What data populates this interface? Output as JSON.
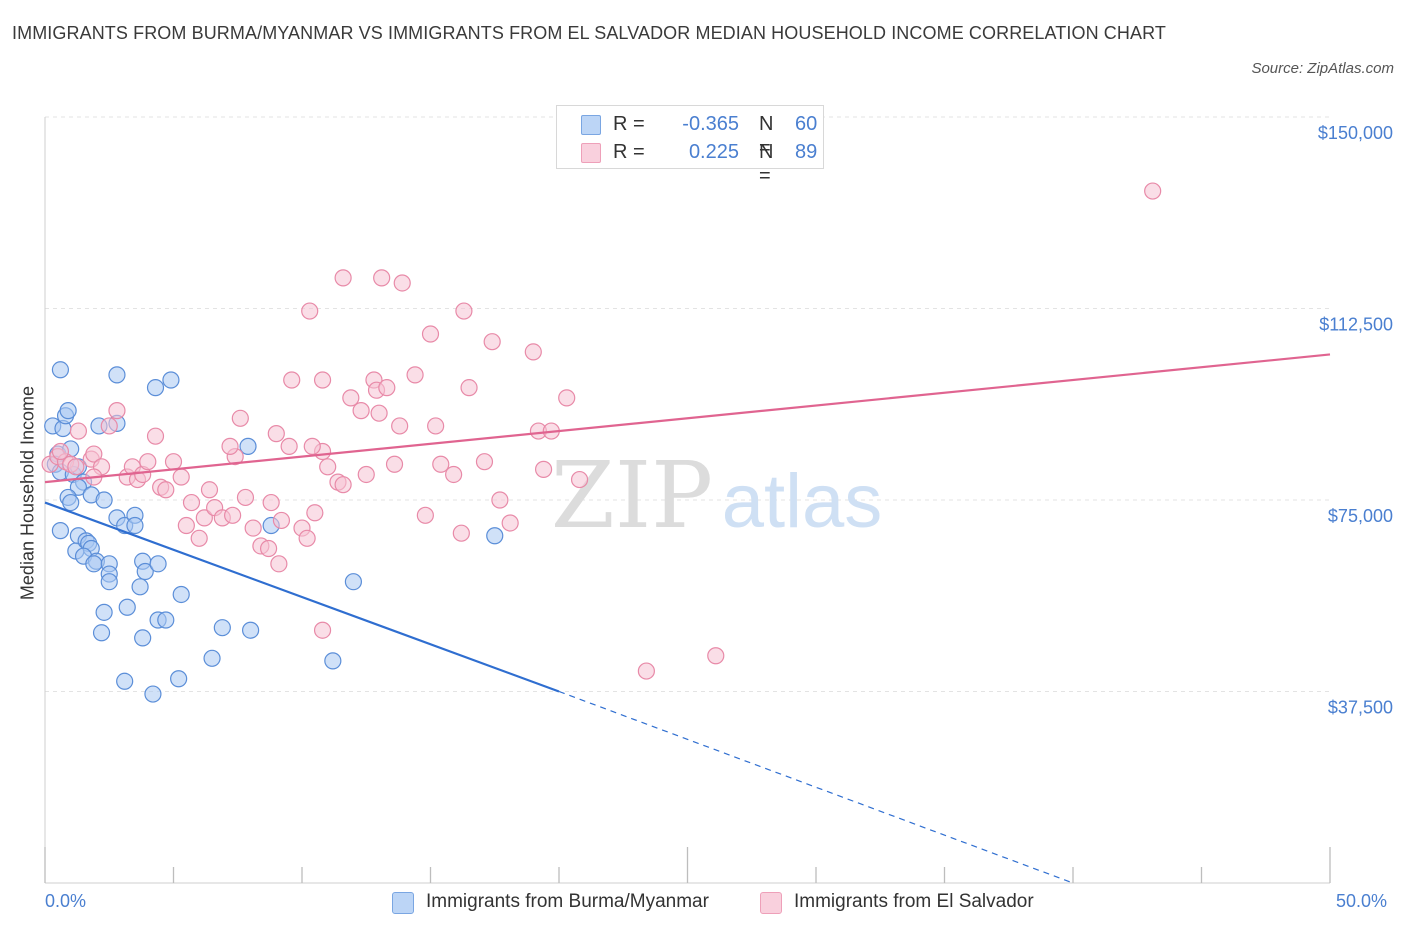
{
  "header": {
    "title": "IMMIGRANTS FROM BURMA/MYANMAR VS IMMIGRANTS FROM EL SALVADOR MEDIAN HOUSEHOLD INCOME CORRELATION CHART",
    "source": "Source: ZipAtlas.com"
  },
  "legend": {
    "series1": {
      "r_label": "R =",
      "r_value": "-0.365",
      "n_label": "N =",
      "n_value": "60"
    },
    "series2": {
      "r_label": "R =",
      "r_value": "0.225",
      "n_label": "N =",
      "n_value": "89"
    }
  },
  "watermark": {
    "zip": "ZIP",
    "atlas": "atlas"
  },
  "colors": {
    "series1_fill": "#a9c8f2",
    "series1_stroke": "#5b8ed8",
    "series1_line": "#2f6ed0",
    "series2_fill": "#f6c3d3",
    "series2_stroke": "#e88aa8",
    "series2_line": "#e06490",
    "tick_text": "#4a7fd0",
    "grid": "#e3e3e3"
  },
  "chart_data": {
    "type": "scatter",
    "title": "IMMIGRANTS FROM BURMA/MYANMAR VS IMMIGRANTS FROM EL SALVADOR MEDIAN HOUSEHOLD INCOME CORRELATION CHART",
    "xlabel": "",
    "ylabel": "Median Household Income",
    "xlim": [
      0,
      50
    ],
    "ylim": [
      0,
      150000
    ],
    "x_tick_labels": [
      "0.0%",
      "50.0%"
    ],
    "y_ticks": [
      37500,
      75000,
      112500,
      150000
    ],
    "y_tick_labels": [
      "$37,500",
      "$75,000",
      "$112,500",
      "$150,000"
    ],
    "grid": true,
    "legend_position": "top-center",
    "series": [
      {
        "name": "Immigrants from Burma/Myanmar",
        "r": -0.365,
        "n": 60,
        "trend": {
          "x0": 0.0,
          "y0": 74500,
          "x1": 20.0,
          "y1": 37500,
          "dashed_to_x": 40.0,
          "dashed_to_y": 0
        },
        "points": [
          [
            0.3,
            89500
          ],
          [
            0.5,
            84000
          ],
          [
            0.4,
            82000
          ],
          [
            0.6,
            80500
          ],
          [
            0.7,
            89000
          ],
          [
            0.6,
            100500
          ],
          [
            0.8,
            91500
          ],
          [
            0.9,
            92500
          ],
          [
            1.0,
            85000
          ],
          [
            1.1,
            80000
          ],
          [
            1.3,
            81500
          ],
          [
            1.5,
            78500
          ],
          [
            1.3,
            77500
          ],
          [
            0.9,
            75500
          ],
          [
            1.0,
            74500
          ],
          [
            1.8,
            76000
          ],
          [
            2.3,
            75000
          ],
          [
            2.1,
            89500
          ],
          [
            2.8,
            90000
          ],
          [
            2.8,
            71500
          ],
          [
            3.1,
            70000
          ],
          [
            3.5,
            72000
          ],
          [
            3.5,
            70000
          ],
          [
            0.6,
            69000
          ],
          [
            1.3,
            68000
          ],
          [
            1.2,
            65000
          ],
          [
            1.6,
            67000
          ],
          [
            1.7,
            66500
          ],
          [
            1.8,
            65500
          ],
          [
            1.5,
            64000
          ],
          [
            2.0,
            63000
          ],
          [
            1.9,
            62500
          ],
          [
            2.5,
            62500
          ],
          [
            3.8,
            63000
          ],
          [
            3.9,
            61000
          ],
          [
            4.4,
            62500
          ],
          [
            2.5,
            60500
          ],
          [
            2.5,
            59000
          ],
          [
            3.7,
            58000
          ],
          [
            5.3,
            56500
          ],
          [
            2.3,
            53000
          ],
          [
            3.2,
            54000
          ],
          [
            4.4,
            51500
          ],
          [
            4.7,
            51500
          ],
          [
            2.2,
            49000
          ],
          [
            3.8,
            48000
          ],
          [
            6.9,
            50000
          ],
          [
            8.0,
            49500
          ],
          [
            6.5,
            44000
          ],
          [
            11.2,
            43500
          ],
          [
            3.1,
            39500
          ],
          [
            5.2,
            40000
          ],
          [
            4.2,
            37000
          ],
          [
            2.8,
            99500
          ],
          [
            4.3,
            97000
          ],
          [
            4.9,
            98500
          ],
          [
            7.9,
            85500
          ],
          [
            8.8,
            70000
          ],
          [
            12.0,
            59000
          ],
          [
            17.5,
            68000
          ]
        ]
      },
      {
        "name": "Immigrants from El Salvador",
        "r": 0.225,
        "n": 89,
        "trend": {
          "x0": 0.0,
          "y0": 78500,
          "x1": 50.0,
          "y1": 103500
        },
        "points": [
          [
            0.2,
            82000
          ],
          [
            0.5,
            83500
          ],
          [
            0.8,
            82500
          ],
          [
            1.0,
            82000
          ],
          [
            0.6,
            84500
          ],
          [
            1.2,
            81500
          ],
          [
            1.3,
            88500
          ],
          [
            1.8,
            83000
          ],
          [
            1.9,
            84000
          ],
          [
            2.2,
            81500
          ],
          [
            1.9,
            79500
          ],
          [
            2.5,
            89500
          ],
          [
            2.8,
            92500
          ],
          [
            3.2,
            79500
          ],
          [
            3.4,
            81500
          ],
          [
            3.6,
            79000
          ],
          [
            3.8,
            80000
          ],
          [
            4.0,
            82500
          ],
          [
            4.3,
            87500
          ],
          [
            4.5,
            77500
          ],
          [
            4.7,
            77000
          ],
          [
            5.0,
            82500
          ],
          [
            5.3,
            79500
          ],
          [
            5.5,
            70000
          ],
          [
            5.7,
            74500
          ],
          [
            6.0,
            67500
          ],
          [
            6.2,
            71500
          ],
          [
            6.4,
            77000
          ],
          [
            6.6,
            73500
          ],
          [
            6.9,
            71500
          ],
          [
            7.3,
            72000
          ],
          [
            7.4,
            83500
          ],
          [
            7.6,
            91000
          ],
          [
            7.2,
            85500
          ],
          [
            7.8,
            75500
          ],
          [
            8.1,
            69500
          ],
          [
            8.4,
            66000
          ],
          [
            8.7,
            65500
          ],
          [
            8.8,
            74500
          ],
          [
            9.1,
            62500
          ],
          [
            9.2,
            71000
          ],
          [
            9.5,
            85500
          ],
          [
            9.0,
            88000
          ],
          [
            10.0,
            69500
          ],
          [
            10.2,
            67500
          ],
          [
            10.5,
            72500
          ],
          [
            10.8,
            84500
          ],
          [
            9.6,
            98500
          ],
          [
            10.4,
            85500
          ],
          [
            11.0,
            81500
          ],
          [
            10.8,
            98500
          ],
          [
            11.4,
            78500
          ],
          [
            11.6,
            78000
          ],
          [
            11.9,
            95000
          ],
          [
            12.3,
            92500
          ],
          [
            12.5,
            80000
          ],
          [
            12.8,
            98500
          ],
          [
            12.9,
            96500
          ],
          [
            13.0,
            92000
          ],
          [
            13.3,
            97000
          ],
          [
            13.6,
            82000
          ],
          [
            13.8,
            89500
          ],
          [
            14.4,
            99500
          ],
          [
            14.8,
            72000
          ],
          [
            15.2,
            89500
          ],
          [
            15.4,
            82000
          ],
          [
            15.9,
            80000
          ],
          [
            16.2,
            68500
          ],
          [
            16.5,
            97000
          ],
          [
            17.1,
            82500
          ],
          [
            17.4,
            106000
          ],
          [
            17.7,
            75000
          ],
          [
            18.1,
            70500
          ],
          [
            19.2,
            88500
          ],
          [
            19.7,
            88500
          ],
          [
            19.0,
            104000
          ],
          [
            19.4,
            81000
          ],
          [
            20.3,
            95000
          ],
          [
            20.8,
            79000
          ],
          [
            11.6,
            118500
          ],
          [
            13.1,
            118500
          ],
          [
            13.9,
            117500
          ],
          [
            10.3,
            112000
          ],
          [
            16.3,
            112000
          ],
          [
            15.0,
            107500
          ],
          [
            23.4,
            41500
          ],
          [
            26.1,
            44500
          ],
          [
            43.1,
            135500
          ],
          [
            10.8,
            49500
          ]
        ]
      }
    ]
  },
  "bottom_legend": {
    "series1_label": "Immigrants from Burma/Myanmar",
    "series2_label": "Immigrants from El Salvador"
  },
  "axes": {
    "ylabel": "Median Household Income",
    "x_min_label": "0.0%",
    "x_max_label": "50.0%"
  }
}
